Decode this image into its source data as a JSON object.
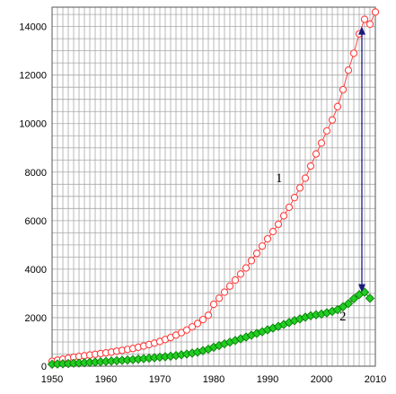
{
  "chart_data": {
    "type": "line",
    "title": "",
    "xlabel": "",
    "ylabel": "",
    "xlim": [
      1950,
      2010
    ],
    "ylim": [
      0,
      14800
    ],
    "grid": true,
    "x_ticks": [
      1950,
      1960,
      1970,
      1980,
      1990,
      2000,
      2010
    ],
    "y_ticks": [
      0,
      2000,
      4000,
      6000,
      8000,
      10000,
      12000,
      14000
    ],
    "colors": {
      "series_1": "#ff4040",
      "series_2_fill": "#22cc22",
      "series_2_line": "#007700",
      "arrow": "#1a1a80",
      "grid": "#a8a8a8"
    },
    "series": [
      {
        "label": "1",
        "marker": "circle",
        "x": [
          1950,
          1951,
          1952,
          1953,
          1954,
          1955,
          1956,
          1957,
          1958,
          1959,
          1960,
          1961,
          1962,
          1963,
          1964,
          1965,
          1966,
          1967,
          1968,
          1969,
          1970,
          1971,
          1972,
          1973,
          1974,
          1975,
          1976,
          1977,
          1978,
          1979,
          1980,
          1981,
          1982,
          1983,
          1984,
          1985,
          1986,
          1987,
          1988,
          1989,
          1990,
          1991,
          1992,
          1993,
          1994,
          1995,
          1996,
          1997,
          1998,
          1999,
          2000,
          2001,
          2002,
          2003,
          2004,
          2005,
          2006,
          2007,
          2008,
          2009,
          2010
        ],
        "values": [
          200,
          250,
          290,
          330,
          370,
          400,
          430,
          460,
          490,
          520,
          550,
          580,
          620,
          650,
          690,
          730,
          780,
          830,
          890,
          950,
          1020,
          1100,
          1180,
          1280,
          1380,
          1490,
          1620,
          1760,
          1920,
          2100,
          2550,
          2800,
          3050,
          3300,
          3550,
          3800,
          4050,
          4350,
          4650,
          4950,
          5250,
          5550,
          5850,
          6200,
          6550,
          6950,
          7350,
          7750,
          8250,
          8750,
          9200,
          9700,
          10150,
          10700,
          11400,
          12200,
          12900,
          13700,
          14300,
          14100,
          14600
        ]
      },
      {
        "label": "2",
        "marker": "diamond",
        "x": [
          1950,
          1951,
          1952,
          1953,
          1954,
          1955,
          1956,
          1957,
          1958,
          1959,
          1960,
          1961,
          1962,
          1963,
          1964,
          1965,
          1966,
          1967,
          1968,
          1969,
          1970,
          1971,
          1972,
          1973,
          1974,
          1975,
          1976,
          1977,
          1978,
          1979,
          1980,
          1981,
          1982,
          1983,
          1984,
          1985,
          1986,
          1987,
          1988,
          1989,
          1990,
          1991,
          1992,
          1993,
          1994,
          1995,
          1996,
          1997,
          1998,
          1999,
          2000,
          2001,
          2002,
          2003,
          2004,
          2005,
          2006,
          2007,
          2008,
          2009
        ],
        "values": [
          80,
          90,
          100,
          110,
          120,
          130,
          140,
          155,
          165,
          180,
          195,
          210,
          225,
          240,
          255,
          270,
          290,
          310,
          330,
          350,
          370,
          390,
          410,
          440,
          470,
          500,
          540,
          580,
          640,
          700,
          780,
          850,
          920,
          990,
          1060,
          1130,
          1200,
          1280,
          1350,
          1420,
          1500,
          1570,
          1640,
          1720,
          1800,
          1880,
          1950,
          2020,
          2080,
          2120,
          2150,
          2200,
          2260,
          2330,
          2450,
          2580,
          2780,
          2950,
          3050,
          2800
        ]
      }
    ],
    "annotation": {
      "type": "double-arrow",
      "x": 2007.5,
      "y_from": 3050,
      "y_to": 14000
    }
  }
}
